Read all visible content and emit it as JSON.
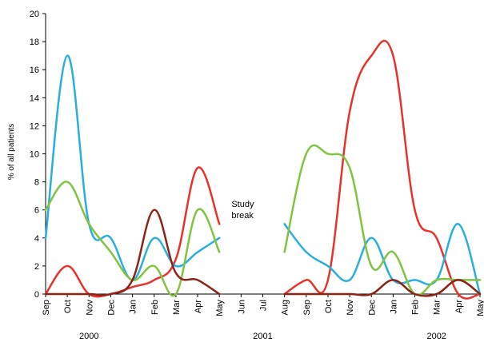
{
  "chart_data": {
    "type": "line",
    "title": "",
    "xlabel": "",
    "ylabel": "% of all patients",
    "ylim": [
      0,
      20
    ],
    "yticks": [
      "0",
      "2",
      "4",
      "6",
      "8",
      "10",
      "12",
      "14",
      "16",
      "18",
      "20"
    ],
    "grid": false,
    "categories": [
      "Sep",
      "Oct",
      "Nov",
      "Dec",
      "Jan",
      "Feb",
      "Mar",
      "Apr",
      "May",
      "Jun",
      "Jul",
      "Aug",
      "Sep",
      "Oct",
      "Nov",
      "Dec",
      "Jan",
      "Feb",
      "Mar",
      "Apr",
      "May"
    ],
    "year_labels": [
      {
        "label": "2000",
        "at": 2
      },
      {
        "label": "2001",
        "at": 10
      },
      {
        "label": "2002",
        "at": 18
      }
    ],
    "annotation": {
      "lines": [
        "Study",
        "break"
      ],
      "at_x": 9,
      "at_y": 6.2
    },
    "series": [
      {
        "color": "#e8322b",
        "values": [
          0,
          2,
          0,
          0,
          0.5,
          1,
          2.5,
          9,
          5,
          null,
          null,
          0,
          1,
          1,
          13,
          17,
          17,
          6,
          4,
          0,
          0
        ]
      },
      {
        "color": "#29aee0",
        "values": [
          4,
          17,
          5,
          4,
          1,
          4,
          2,
          3,
          4,
          null,
          null,
          5,
          3,
          2,
          1,
          4,
          1,
          1,
          1,
          5,
          0
        ]
      },
      {
        "color": "#82c341",
        "values": [
          6,
          8,
          5,
          3,
          1,
          2,
          0,
          6,
          3,
          null,
          null,
          3,
          10,
          10,
          9,
          2,
          3,
          0,
          1,
          1,
          1
        ]
      },
      {
        "color": "#8b2317",
        "values": [
          0,
          0,
          0,
          0,
          1,
          6,
          1.5,
          1,
          0,
          null,
          null,
          0,
          0,
          0,
          0,
          0,
          1,
          0,
          0,
          1,
          0
        ]
      }
    ]
  }
}
